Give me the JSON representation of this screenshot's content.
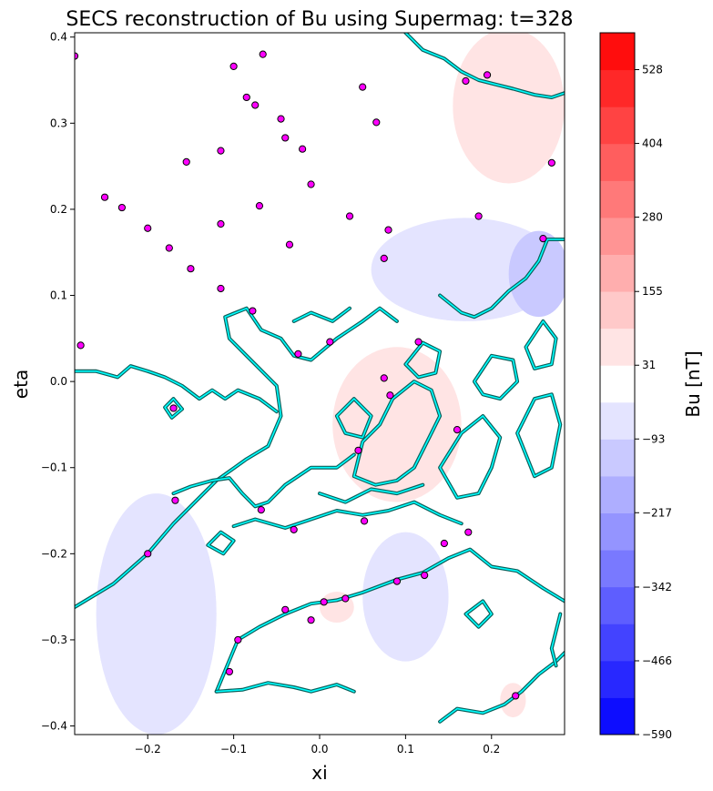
{
  "chart_data": {
    "type": "contour-map",
    "title": "SECS reconstruction of Bu using Supermag: t=328",
    "xlabel": "xi",
    "ylabel": "eta",
    "xlim": [
      -0.285,
      0.285
    ],
    "ylim": [
      -0.41,
      0.405
    ],
    "xticks": [
      -0.2,
      -0.1,
      0.0,
      0.1,
      0.2
    ],
    "xtick_labels": [
      "−0.2",
      "−0.1",
      "0.0",
      "0.1",
      "0.2"
    ],
    "yticks": [
      -0.4,
      -0.3,
      -0.2,
      -0.1,
      0.0,
      0.1,
      0.2,
      0.3,
      0.4
    ],
    "ytick_labels": [
      "−0.4",
      "−0.3",
      "−0.2",
      "−0.1",
      "0.0",
      "0.1",
      "0.2",
      "0.3",
      "0.4"
    ],
    "colorbar": {
      "label": "Bu [nT]",
      "vmin": -590,
      "vmax": 590,
      "levels": 19,
      "ticks": [
        -590,
        -466,
        -342,
        -217,
        -93,
        31,
        155,
        280,
        404,
        528
      ],
      "tick_labels": [
        "−590",
        "−466",
        "−342",
        "−217",
        "−93",
        "31",
        "155",
        "280",
        "404",
        "528"
      ],
      "colormap": "bwr"
    },
    "field_regions": [
      {
        "level": 93,
        "shape": "ellipse",
        "cx": 0.22,
        "cy": 0.32,
        "rx": 0.065,
        "ry": 0.09
      },
      {
        "level": -93,
        "shape": "ellipse",
        "cx": 0.17,
        "cy": 0.13,
        "rx": 0.11,
        "ry": 0.06
      },
      {
        "level": -155,
        "shape": "ellipse",
        "cx": 0.255,
        "cy": 0.125,
        "rx": 0.035,
        "ry": 0.05
      },
      {
        "level": 93,
        "shape": "ellipse",
        "cx": 0.09,
        "cy": -0.05,
        "rx": 0.075,
        "ry": 0.09
      },
      {
        "level": -93,
        "shape": "ellipse",
        "cx": -0.19,
        "cy": -0.27,
        "rx": 0.07,
        "ry": 0.14
      },
      {
        "level": -93,
        "shape": "ellipse",
        "cx": 0.1,
        "cy": -0.25,
        "rx": 0.05,
        "ry": 0.075
      },
      {
        "level": 93,
        "shape": "ellipse",
        "cx": 0.02,
        "cy": -0.262,
        "rx": 0.02,
        "ry": 0.018
      },
      {
        "level": 93,
        "shape": "ellipse",
        "cx": 0.225,
        "cy": -0.37,
        "rx": 0.015,
        "ry": 0.02
      }
    ],
    "stations": {
      "x": [
        -0.285,
        -0.1,
        -0.066,
        -0.085,
        -0.075,
        -0.045,
        -0.04,
        -0.02,
        0.05,
        0.066,
        0.17,
        0.195,
        -0.155,
        -0.115,
        -0.25,
        -0.23,
        -0.2,
        -0.175,
        -0.15,
        -0.115,
        -0.07,
        -0.035,
        -0.01,
        0.035,
        0.075,
        0.08,
        0.185,
        0.26,
        0.27,
        -0.115,
        -0.078,
        -0.278,
        -0.025,
        0.012,
        0.075,
        0.115,
        -0.17,
        0.082,
        0.045,
        0.16,
        -0.168,
        -0.068,
        -0.03,
        0.052,
        0.145,
        0.173,
        -0.2,
        0.09,
        0.122,
        -0.04,
        0.005,
        0.03,
        -0.01,
        -0.095,
        -0.105,
        0.228
      ],
      "y": [
        0.378,
        0.366,
        0.38,
        0.33,
        0.321,
        0.305,
        0.283,
        0.27,
        0.342,
        0.301,
        0.349,
        0.356,
        0.255,
        0.268,
        0.214,
        0.202,
        0.178,
        0.155,
        0.131,
        0.183,
        0.204,
        0.159,
        0.229,
        0.192,
        0.143,
        0.176,
        0.192,
        0.166,
        0.254,
        0.108,
        0.082,
        0.042,
        0.032,
        0.046,
        0.004,
        0.046,
        -0.031,
        -0.016,
        -0.08,
        -0.056,
        -0.138,
        -0.149,
        -0.172,
        -0.162,
        -0.188,
        -0.175,
        -0.2,
        -0.232,
        -0.225,
        -0.265,
        -0.256,
        -0.252,
        -0.277,
        -0.3,
        -0.337,
        -0.365
      ]
    },
    "coastlines": [
      {
        "kind": "line",
        "points": [
          [
            -0.285,
            -0.262
          ],
          [
            -0.24,
            -0.235
          ],
          [
            -0.2,
            -0.2
          ],
          [
            -0.17,
            -0.165
          ],
          [
            -0.12,
            -0.115
          ],
          [
            -0.085,
            -0.09
          ],
          [
            -0.06,
            -0.075
          ],
          [
            -0.045,
            -0.04
          ],
          [
            -0.05,
            -0.005
          ],
          [
            -0.085,
            0.03
          ],
          [
            -0.105,
            0.05
          ],
          [
            -0.11,
            0.075
          ],
          [
            -0.085,
            0.085
          ],
          [
            -0.068,
            0.06
          ],
          [
            -0.045,
            0.05
          ],
          [
            -0.03,
            0.03
          ],
          [
            -0.01,
            0.025
          ],
          [
            0.02,
            0.05
          ],
          [
            0.05,
            0.07
          ],
          [
            0.07,
            0.085
          ],
          [
            0.09,
            0.07
          ]
        ]
      },
      {
        "kind": "line",
        "points": [
          [
            -0.285,
            0.012
          ],
          [
            -0.26,
            0.012
          ],
          [
            -0.235,
            0.005
          ],
          [
            -0.22,
            0.018
          ],
          [
            -0.2,
            0.012
          ],
          [
            -0.18,
            0.005
          ],
          [
            -0.16,
            -0.005
          ],
          [
            -0.14,
            -0.02
          ],
          [
            -0.125,
            -0.01
          ],
          [
            -0.11,
            -0.02
          ],
          [
            -0.095,
            -0.01
          ],
          [
            -0.07,
            -0.02
          ],
          [
            -0.05,
            -0.035
          ]
        ]
      },
      {
        "kind": "line",
        "points": [
          [
            -0.17,
            -0.13
          ],
          [
            -0.15,
            -0.122
          ],
          [
            -0.125,
            -0.115
          ],
          [
            -0.105,
            -0.112
          ],
          [
            -0.09,
            -0.13
          ],
          [
            -0.075,
            -0.145
          ],
          [
            -0.06,
            -0.14
          ],
          [
            -0.04,
            -0.12
          ],
          [
            -0.01,
            -0.1
          ],
          [
            0.02,
            -0.1
          ],
          [
            0.04,
            -0.085
          ]
        ]
      },
      {
        "kind": "line",
        "points": [
          [
            -0.1,
            -0.168
          ],
          [
            -0.075,
            -0.16
          ],
          [
            -0.04,
            -0.17
          ],
          [
            -0.01,
            -0.16
          ],
          [
            0.02,
            -0.15
          ],
          [
            0.05,
            -0.155
          ],
          [
            0.08,
            -0.15
          ],
          [
            0.11,
            -0.14
          ],
          [
            0.14,
            -0.155
          ],
          [
            0.165,
            -0.165
          ]
        ]
      },
      {
        "kind": "line",
        "points": [
          [
            -0.12,
            -0.36
          ],
          [
            -0.095,
            -0.3
          ],
          [
            -0.07,
            -0.285
          ],
          [
            -0.04,
            -0.27
          ],
          [
            -0.01,
            -0.258
          ],
          [
            0.02,
            -0.254
          ],
          [
            0.05,
            -0.245
          ],
          [
            0.09,
            -0.23
          ],
          [
            0.12,
            -0.222
          ],
          [
            0.15,
            -0.205
          ],
          [
            0.175,
            -0.195
          ],
          [
            0.2,
            -0.215
          ],
          [
            0.23,
            -0.22
          ],
          [
            0.26,
            -0.24
          ],
          [
            0.285,
            -0.255
          ]
        ]
      },
      {
        "kind": "line",
        "points": [
          [
            -0.12,
            -0.36
          ],
          [
            -0.09,
            -0.358
          ],
          [
            -0.06,
            -0.35
          ],
          [
            -0.03,
            -0.355
          ],
          [
            -0.01,
            -0.36
          ],
          [
            0.02,
            -0.352
          ],
          [
            0.04,
            -0.36
          ]
        ]
      },
      {
        "kind": "line",
        "points": [
          [
            0.14,
            -0.395
          ],
          [
            0.16,
            -0.38
          ],
          [
            0.19,
            -0.385
          ],
          [
            0.215,
            -0.375
          ],
          [
            0.235,
            -0.36
          ],
          [
            0.255,
            -0.34
          ],
          [
            0.275,
            -0.325
          ],
          [
            0.285,
            -0.315
          ]
        ]
      },
      {
        "kind": "line",
        "points": [
          [
            0.1,
            0.405
          ],
          [
            0.12,
            0.385
          ],
          [
            0.145,
            0.375
          ],
          [
            0.165,
            0.36
          ],
          [
            0.185,
            0.35
          ],
          [
            0.205,
            0.345
          ],
          [
            0.225,
            0.34
          ],
          [
            0.25,
            0.333
          ],
          [
            0.27,
            0.33
          ],
          [
            0.285,
            0.335
          ]
        ]
      },
      {
        "kind": "line",
        "points": [
          [
            0.285,
            0.165
          ],
          [
            0.265,
            0.165
          ],
          [
            0.255,
            0.14
          ],
          [
            0.24,
            0.12
          ],
          [
            0.22,
            0.105
          ],
          [
            0.2,
            0.085
          ],
          [
            0.18,
            0.075
          ],
          [
            0.165,
            0.08
          ],
          [
            0.14,
            0.1
          ]
        ]
      },
      {
        "kind": "polygon",
        "points": [
          [
            0.04,
            -0.11
          ],
          [
            0.05,
            -0.07
          ],
          [
            0.07,
            -0.05
          ],
          [
            0.085,
            -0.02
          ],
          [
            0.11,
            0.0
          ],
          [
            0.13,
            -0.01
          ],
          [
            0.14,
            -0.04
          ],
          [
            0.125,
            -0.07
          ],
          [
            0.11,
            -0.1
          ],
          [
            0.09,
            -0.115
          ],
          [
            0.065,
            -0.12
          ]
        ]
      },
      {
        "kind": "polygon",
        "points": [
          [
            0.14,
            -0.1
          ],
          [
            0.165,
            -0.06
          ],
          [
            0.19,
            -0.04
          ],
          [
            0.21,
            -0.065
          ],
          [
            0.2,
            -0.1
          ],
          [
            0.185,
            -0.13
          ],
          [
            0.16,
            -0.135
          ]
        ]
      },
      {
        "kind": "polygon",
        "points": [
          [
            0.23,
            -0.06
          ],
          [
            0.25,
            -0.02
          ],
          [
            0.27,
            -0.015
          ],
          [
            0.28,
            -0.05
          ],
          [
            0.27,
            -0.1
          ],
          [
            0.25,
            -0.11
          ]
        ]
      },
      {
        "kind": "polygon",
        "points": [
          [
            0.02,
            -0.04
          ],
          [
            0.04,
            -0.02
          ],
          [
            0.06,
            -0.04
          ],
          [
            0.05,
            -0.065
          ],
          [
            0.03,
            -0.06
          ]
        ]
      },
      {
        "kind": "polygon",
        "points": [
          [
            0.1,
            0.02
          ],
          [
            0.12,
            0.045
          ],
          [
            0.14,
            0.035
          ],
          [
            0.135,
            0.01
          ],
          [
            0.115,
            0.005
          ]
        ]
      },
      {
        "kind": "polygon",
        "points": [
          [
            0.18,
            0.0
          ],
          [
            0.2,
            0.03
          ],
          [
            0.225,
            0.025
          ],
          [
            0.23,
            0.0
          ],
          [
            0.21,
            -0.02
          ],
          [
            0.19,
            -0.015
          ]
        ]
      },
      {
        "kind": "polygon",
        "points": [
          [
            0.24,
            0.04
          ],
          [
            0.26,
            0.07
          ],
          [
            0.275,
            0.05
          ],
          [
            0.27,
            0.02
          ],
          [
            0.25,
            0.015
          ]
        ]
      },
      {
        "kind": "polygon",
        "points": [
          [
            -0.18,
            -0.03
          ],
          [
            -0.17,
            -0.02
          ],
          [
            -0.16,
            -0.032
          ],
          [
            -0.172,
            -0.042
          ]
        ]
      },
      {
        "kind": "polygon",
        "points": [
          [
            -0.13,
            -0.19
          ],
          [
            -0.115,
            -0.175
          ],
          [
            -0.1,
            -0.185
          ],
          [
            -0.112,
            -0.2
          ]
        ]
      },
      {
        "kind": "polygon",
        "points": [
          [
            0.17,
            -0.27
          ],
          [
            0.19,
            -0.255
          ],
          [
            0.2,
            -0.27
          ],
          [
            0.185,
            -0.285
          ]
        ]
      },
      {
        "kind": "line",
        "points": [
          [
            0.28,
            -0.27
          ],
          [
            0.27,
            -0.31
          ],
          [
            0.275,
            -0.33
          ]
        ]
      },
      {
        "kind": "line",
        "points": [
          [
            0.0,
            -0.13
          ],
          [
            0.03,
            -0.14
          ],
          [
            0.06,
            -0.125
          ],
          [
            0.09,
            -0.13
          ],
          [
            0.12,
            -0.12
          ]
        ]
      },
      {
        "kind": "line",
        "points": [
          [
            -0.03,
            0.07
          ],
          [
            -0.01,
            0.08
          ],
          [
            0.015,
            0.07
          ],
          [
            0.035,
            0.085
          ]
        ]
      }
    ]
  }
}
